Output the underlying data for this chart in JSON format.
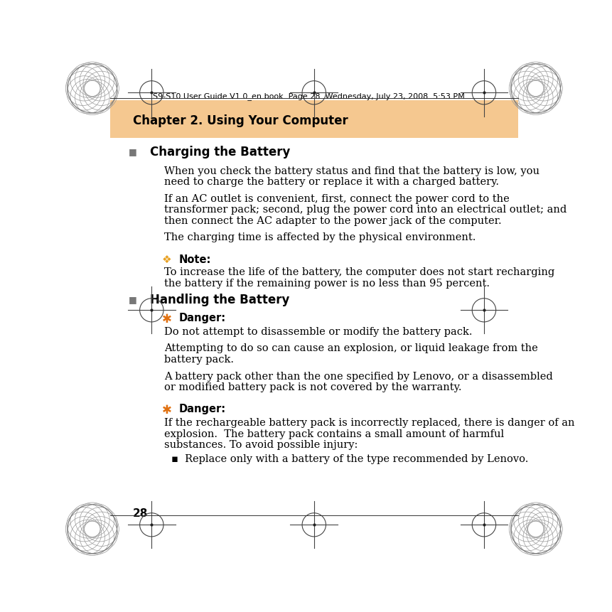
{
  "bg_color": "#ffffff",
  "header_bar_color": "#f5c890",
  "header_text": "Chapter 2. Using Your Computer",
  "top_rule_text": "S9-S10 User Guide V1.0_en.book  Page 28  Wednesday, July 23, 2008  5:53 PM",
  "page_number": "28",
  "section1_title": "Charging the Battery",
  "para1_1_lines": [
    "When you check the battery status and find that the battery is low, you",
    "need to charge the battery or replace it with a charged battery."
  ],
  "para1_2_lines": [
    "If an AC outlet is convenient, first, connect the power cord to the",
    "transformer pack; second, plug the power cord into an electrical outlet; and",
    "then connect the AC adapter to the power jack of the computer."
  ],
  "para1_3_lines": [
    "The charging time is affected by the physical environment."
  ],
  "note_icon": "❖",
  "note_label": "Note:",
  "note_icon_color": "#e8a020",
  "note_text_lines": [
    "To increase the life of the battery, the computer does not start recharging",
    "the battery if the remaining power is no less than 95 percent."
  ],
  "section2_title": "Handling the Battery",
  "danger_icon": "✱",
  "danger_icon_color": "#e07010",
  "danger_label": "Danger:",
  "danger1_line1": "Do not attempt to disassemble or modify the battery pack.",
  "danger1_para2_lines": [
    "Attempting to do so can cause an explosion, or liquid leakage from the",
    "battery pack."
  ],
  "danger1_para3_lines": [
    "A battery pack other than the one specified by Lenovo, or a disassembled",
    "or modified battery pack is not covered by the warranty."
  ],
  "danger2_text_lines": [
    "If the rechargeable battery pack is incorrectly replaced, there is danger of an",
    "explosion.  The battery pack contains a small amount of harmful",
    "substances. To avoid possible injury:"
  ],
  "bullet_sub": "Replace only with a battery of the type recommended by Lenovo.",
  "text_color": "#000000",
  "gray_color": "#666666",
  "font_size_body": 10.5,
  "font_size_heading": 12,
  "font_size_header_bar": 12,
  "font_size_top_rule": 8,
  "lm_bullet": 0.118,
  "lm_content": 0.185,
  "lm_section": 0.155
}
